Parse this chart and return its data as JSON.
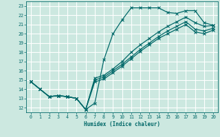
{
  "xlabel": "Humidex (Indice chaleur)",
  "bg_color": "#cce8e0",
  "grid_color": "#ffffff",
  "line_color": "#006868",
  "xlim": [
    -0.5,
    20.5
  ],
  "ylim": [
    11.5,
    23.5
  ],
  "xticks": [
    0,
    1,
    2,
    3,
    4,
    5,
    6,
    7,
    8,
    9,
    10,
    11,
    12,
    13,
    14,
    15,
    16,
    17,
    18,
    19,
    20
  ],
  "yticks": [
    12,
    13,
    14,
    15,
    16,
    17,
    18,
    19,
    20,
    21,
    22,
    23
  ],
  "x": [
    0,
    1,
    2,
    3,
    4,
    5,
    6,
    7,
    8,
    9,
    10,
    11,
    12,
    13,
    14,
    15,
    16,
    17,
    18,
    19,
    20
  ],
  "lines": [
    [
      14.8,
      14.0,
      13.2,
      13.3,
      13.2,
      13.0,
      11.8,
      12.5,
      17.2,
      20.0,
      21.5,
      22.8,
      22.8,
      22.8,
      22.8,
      22.3,
      22.2,
      22.5,
      22.5,
      21.2,
      20.9
    ],
    [
      14.8,
      14.0,
      13.2,
      13.3,
      13.2,
      13.0,
      11.8,
      15.2,
      15.5,
      16.2,
      17.0,
      18.0,
      18.8,
      19.5,
      20.2,
      20.8,
      21.3,
      21.8,
      21.2,
      20.8,
      20.9
    ],
    [
      14.8,
      14.0,
      13.2,
      13.3,
      13.2,
      13.0,
      11.8,
      15.0,
      15.3,
      16.0,
      16.7,
      17.5,
      18.3,
      19.0,
      19.7,
      20.3,
      20.8,
      21.3,
      20.5,
      20.3,
      20.6
    ],
    [
      14.8,
      14.0,
      13.2,
      13.3,
      13.2,
      13.0,
      11.8,
      14.8,
      15.1,
      15.8,
      16.5,
      17.3,
      18.1,
      18.8,
      19.5,
      20.0,
      20.5,
      21.0,
      20.2,
      20.0,
      20.4
    ]
  ]
}
